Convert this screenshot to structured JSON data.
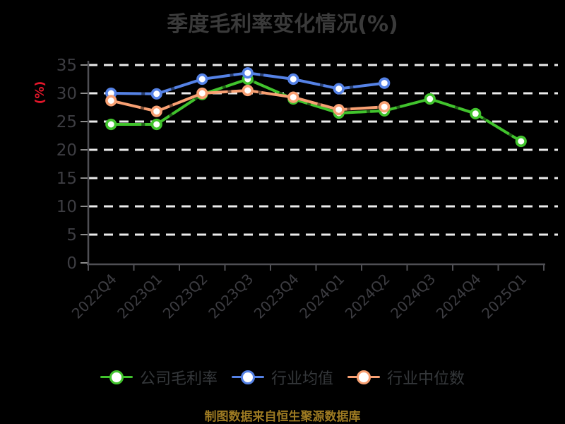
{
  "footer": "制图数据来自恒生聚源数据库",
  "colors": {
    "background": "#000000",
    "title": "#3a3a3a",
    "axis": "#4f4f54",
    "tick": "#8c8c8c",
    "tick_label": "#3d3d42",
    "grid": "#ebebeb",
    "ylabel": "#e6172b",
    "legend_text": "#35383b",
    "footer_text": "#9d7a22",
    "marker_fill": "#ffffff"
  },
  "chart_data": {
    "type": "line",
    "title": "季度毛利率变化情况(%)",
    "ylabel": "(%)",
    "xlabel": "",
    "categories": [
      "2022Q4",
      "2023Q1",
      "2023Q2",
      "2023Q3",
      "2023Q4",
      "2024Q1",
      "2024Q2",
      "2024Q3",
      "2024Q4",
      "2025Q1"
    ],
    "series": [
      {
        "name": "公司毛利率",
        "color": "#41c32d",
        "values": [
          24.5,
          24.5,
          29.8,
          32.5,
          29.0,
          26.5,
          26.9,
          29.0,
          26.4,
          21.5
        ]
      },
      {
        "name": "行业均值",
        "color": "#5582e6",
        "values": [
          30.0,
          29.9,
          32.5,
          33.6,
          32.5,
          30.8,
          31.8
        ]
      },
      {
        "name": "行业中位数",
        "color": "#f8a073",
        "values": [
          28.7,
          26.8,
          30.0,
          30.5,
          29.3,
          27.1,
          27.6
        ]
      }
    ],
    "ylim": [
      0,
      35
    ],
    "yticks": [
      0,
      5,
      10,
      15,
      20,
      25,
      30,
      35
    ],
    "x_tick_rotation": 45,
    "grid": "horizontal-dashed",
    "legend_position": "bottom"
  }
}
